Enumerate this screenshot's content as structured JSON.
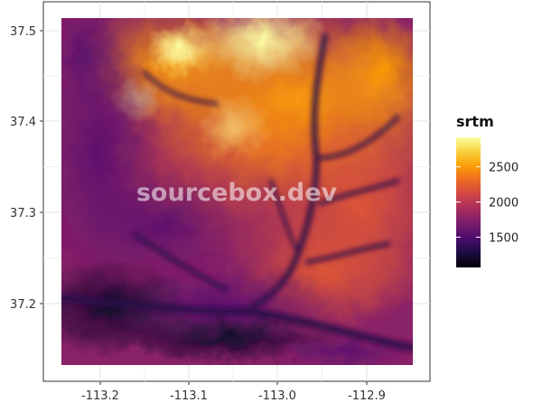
{
  "watermark": "sourcebox.dev",
  "chart_data": {
    "type": "heatmap",
    "title": "",
    "xlabel": "",
    "ylabel": "",
    "x_ticks": [
      -113.2,
      -113.1,
      -113.0,
      -112.9
    ],
    "x_tick_labels": [
      "-113.2",
      "-113.1",
      "-113.0",
      "-112.9"
    ],
    "y_ticks": [
      37.2,
      37.3,
      37.4,
      37.5
    ],
    "y_tick_labels": [
      "37.2",
      "37.3",
      "37.4",
      "37.5"
    ],
    "xlim": [
      -113.25,
      -112.85
    ],
    "ylim": [
      37.12,
      37.52
    ],
    "grid": true,
    "legend": {
      "title": "srtm",
      "position": "right",
      "ticks": [
        1500,
        2000,
        2500
      ],
      "tick_labels": [
        "1500",
        "2000",
        "2500"
      ],
      "range": [
        1070,
        2920
      ],
      "palette": "inferno",
      "colors": [
        "#000004",
        "#1b0c41",
        "#4a0c6b",
        "#781c6d",
        "#a52c60",
        "#cf4446",
        "#ed6925",
        "#fb9b06",
        "#f7d13d",
        "#fcffa4"
      ]
    }
  }
}
